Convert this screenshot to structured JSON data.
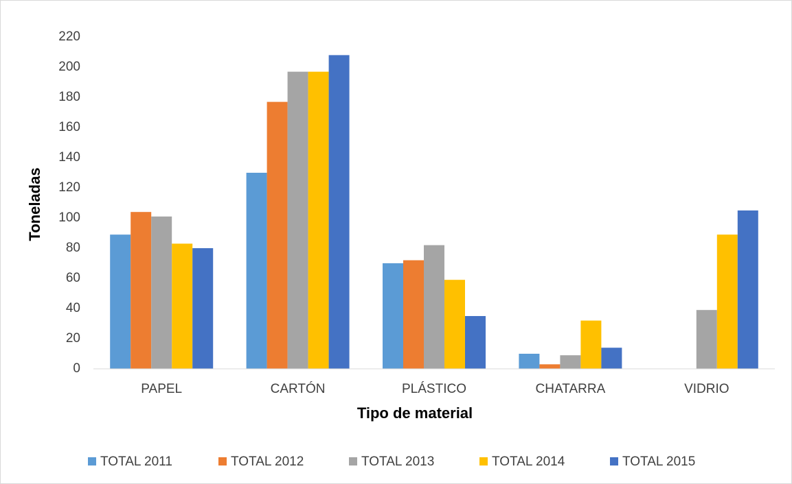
{
  "chart_data": {
    "type": "bar",
    "x_label": "Tipo de material",
    "y_label": "Toneladas",
    "categories": [
      "PAPEL",
      "CARTÓN",
      "PLÁSTICO",
      "CHATARRA",
      "VIDRIO"
    ],
    "series": [
      {
        "name": "TOTAL 2011",
        "color": "#5b9bd5",
        "values": [
          89,
          130,
          70,
          10,
          null
        ]
      },
      {
        "name": "TOTAL 2012",
        "color": "#ed7d31",
        "values": [
          104,
          177,
          72,
          3,
          null
        ]
      },
      {
        "name": "TOTAL 2013",
        "color": "#a5a5a5",
        "values": [
          101,
          197,
          82,
          9,
          39
        ]
      },
      {
        "name": "TOTAL 2014",
        "color": "#ffc000",
        "values": [
          83,
          197,
          59,
          32,
          89
        ]
      },
      {
        "name": "TOTAL 2015",
        "color": "#4472c4",
        "values": [
          80,
          208,
          35,
          14,
          105
        ]
      }
    ],
    "ylim": [
      0,
      220
    ],
    "yticks": [
      0,
      20,
      40,
      60,
      80,
      100,
      120,
      140,
      160,
      180,
      200,
      220
    ],
    "grid": false,
    "legend": "bottom"
  }
}
